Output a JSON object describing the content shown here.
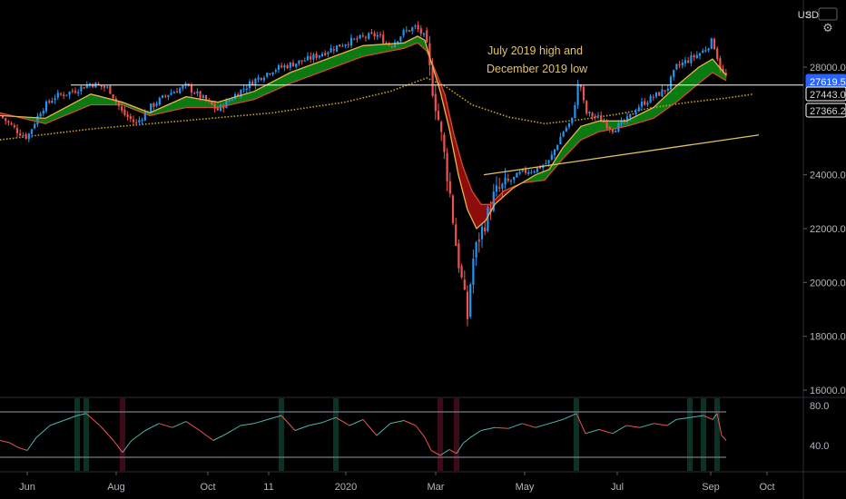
{
  "chart_data": {
    "type": "candlestick",
    "currency_label": "USD",
    "annotation": [
      "July 2019 high and",
      "December 2019 low"
    ],
    "ylim": [
      15500,
      30600
    ],
    "y_ticks": [
      16000,
      18000,
      20000,
      22000,
      24000,
      28000
    ],
    "y_tick_labels": [
      "16000.0",
      "18000.0",
      "20000.0",
      "22000.0",
      "24000.0",
      "28000.0"
    ],
    "x_labels": [
      "Jun",
      "Aug",
      "Oct",
      "11",
      "2020",
      "Mar",
      "May",
      "Jul",
      "Sep",
      "Oct"
    ],
    "price_labels": [
      {
        "text": "27619.5",
        "value": 27619.5,
        "style": "filled",
        "color": "#2962ff"
      },
      {
        "text": "27443.0",
        "value": 27443.0,
        "style": "outline",
        "color": "#ffffff"
      },
      {
        "text": "27366.2",
        "value": 27366.2,
        "style": "outline",
        "color": "#ffffff"
      }
    ],
    "horizontal_level": 27366,
    "trendline": [
      [
        24000,
        23270
      ],
      [
        25480,
        28220
      ]
    ],
    "price_path": [
      [
        0,
        26200
      ],
      [
        20,
        25600
      ],
      [
        30,
        25400
      ],
      [
        45,
        26400
      ],
      [
        60,
        26900
      ],
      [
        80,
        27100
      ],
      [
        100,
        27400
      ],
      [
        120,
        27200
      ],
      [
        135,
        26300
      ],
      [
        150,
        25900
      ],
      [
        165,
        26500
      ],
      [
        185,
        27000
      ],
      [
        205,
        27300
      ],
      [
        225,
        26800
      ],
      [
        240,
        26400
      ],
      [
        260,
        27000
      ],
      [
        280,
        27500
      ],
      [
        300,
        27900
      ],
      [
        320,
        28100
      ],
      [
        340,
        28300
      ],
      [
        360,
        28600
      ],
      [
        380,
        28900
      ],
      [
        400,
        29100
      ],
      [
        415,
        29200
      ],
      [
        430,
        28800
      ],
      [
        445,
        29300
      ],
      [
        458,
        29500
      ],
      [
        468,
        29100
      ],
      [
        475,
        27500
      ],
      [
        485,
        25700
      ],
      [
        495,
        23500
      ],
      [
        503,
        21200
      ],
      [
        510,
        19800
      ],
      [
        515,
        18700
      ],
      [
        520,
        20700
      ],
      [
        527,
        21600
      ],
      [
        535,
        22300
      ],
      [
        545,
        23300
      ],
      [
        560,
        23700
      ],
      [
        575,
        24100
      ],
      [
        590,
        24200
      ],
      [
        605,
        24500
      ],
      [
        620,
        25600
      ],
      [
        630,
        26000
      ],
      [
        638,
        27600
      ],
      [
        645,
        26300
      ],
      [
        660,
        26100
      ],
      [
        675,
        25700
      ],
      [
        690,
        26000
      ],
      [
        705,
        26600
      ],
      [
        720,
        26900
      ],
      [
        735,
        27200
      ],
      [
        745,
        28000
      ],
      [
        760,
        28300
      ],
      [
        775,
        28600
      ],
      [
        785,
        29000
      ],
      [
        795,
        27800
      ],
      [
        800,
        27650
      ]
    ],
    "ema_fast": [
      [
        0,
        26200
      ],
      [
        50,
        26100
      ],
      [
        100,
        27000
      ],
      [
        135,
        26700
      ],
      [
        165,
        26300
      ],
      [
        205,
        26900
      ],
      [
        240,
        26700
      ],
      [
        280,
        27100
      ],
      [
        320,
        27800
      ],
      [
        360,
        28300
      ],
      [
        400,
        28800
      ],
      [
        445,
        28900
      ],
      [
        460,
        29150
      ],
      [
        468,
        29000
      ],
      [
        475,
        28200
      ],
      [
        485,
        27100
      ],
      [
        495,
        25700
      ],
      [
        505,
        24000
      ],
      [
        515,
        22700
      ],
      [
        525,
        22000
      ],
      [
        535,
        22300
      ],
      [
        545,
        22900
      ],
      [
        565,
        23500
      ],
      [
        590,
        24000
      ],
      [
        605,
        24200
      ],
      [
        620,
        25000
      ],
      [
        640,
        25800
      ],
      [
        660,
        26000
      ],
      [
        690,
        26000
      ],
      [
        720,
        26500
      ],
      [
        745,
        27300
      ],
      [
        770,
        28000
      ],
      [
        785,
        28300
      ],
      [
        800,
        27700
      ]
    ],
    "ema_slow": [
      [
        0,
        26300
      ],
      [
        50,
        25900
      ],
      [
        100,
        26600
      ],
      [
        135,
        26600
      ],
      [
        165,
        26200
      ],
      [
        205,
        26500
      ],
      [
        240,
        26500
      ],
      [
        280,
        26800
      ],
      [
        320,
        27400
      ],
      [
        360,
        27900
      ],
      [
        400,
        28400
      ],
      [
        445,
        28700
      ],
      [
        460,
        28900
      ],
      [
        470,
        28600
      ],
      [
        478,
        28000
      ],
      [
        490,
        27000
      ],
      [
        500,
        25500
      ],
      [
        510,
        24300
      ],
      [
        520,
        23400
      ],
      [
        530,
        22900
      ],
      [
        540,
        22900
      ],
      [
        555,
        23400
      ],
      [
        575,
        23700
      ],
      [
        600,
        23800
      ],
      [
        620,
        24600
      ],
      [
        640,
        25300
      ],
      [
        660,
        25600
      ],
      [
        690,
        25800
      ],
      [
        720,
        26100
      ],
      [
        745,
        26700
      ],
      [
        770,
        27400
      ],
      [
        785,
        27800
      ],
      [
        800,
        27500
      ]
    ],
    "sma_long": [
      [
        0,
        25300
      ],
      [
        100,
        25700
      ],
      [
        200,
        26000
      ],
      [
        300,
        26300
      ],
      [
        380,
        26700
      ],
      [
        430,
        27100
      ],
      [
        470,
        27600
      ],
      [
        490,
        27300
      ],
      [
        520,
        26600
      ],
      [
        560,
        26150
      ],
      [
        600,
        25900
      ],
      [
        640,
        26050
      ],
      [
        680,
        26250
      ],
      [
        720,
        26500
      ],
      [
        760,
        26700
      ],
      [
        800,
        26850
      ],
      [
        830,
        27000
      ]
    ],
    "rsi": {
      "upper": 70,
      "lower": 30,
      "y_labels": [
        "80.0",
        "40.0"
      ],
      "y_label_values": [
        80,
        40
      ],
      "series": [
        [
          0,
          45
        ],
        [
          10,
          43
        ],
        [
          20,
          38
        ],
        [
          30,
          35
        ],
        [
          40,
          48
        ],
        [
          55,
          60
        ],
        [
          70,
          65
        ],
        [
          85,
          70
        ],
        [
          95,
          72
        ],
        [
          110,
          60
        ],
        [
          125,
          45
        ],
        [
          135,
          33
        ],
        [
          145,
          45
        ],
        [
          160,
          55
        ],
        [
          175,
          62
        ],
        [
          190,
          58
        ],
        [
          205,
          64
        ],
        [
          220,
          55
        ],
        [
          235,
          45
        ],
        [
          250,
          52
        ],
        [
          265,
          60
        ],
        [
          280,
          62
        ],
        [
          295,
          66
        ],
        [
          310,
          70
        ],
        [
          325,
          55
        ],
        [
          340,
          60
        ],
        [
          355,
          63
        ],
        [
          370,
          68
        ],
        [
          385,
          60
        ],
        [
          400,
          66
        ],
        [
          415,
          50
        ],
        [
          430,
          62
        ],
        [
          445,
          65
        ],
        [
          458,
          60
        ],
        [
          468,
          48
        ],
        [
          475,
          35
        ],
        [
          485,
          30
        ],
        [
          495,
          36
        ],
        [
          503,
          32
        ],
        [
          510,
          42
        ],
        [
          518,
          48
        ],
        [
          530,
          55
        ],
        [
          545,
          58
        ],
        [
          560,
          57
        ],
        [
          575,
          62
        ],
        [
          590,
          58
        ],
        [
          605,
          62
        ],
        [
          620,
          66
        ],
        [
          635,
          72
        ],
        [
          645,
          52
        ],
        [
          660,
          56
        ],
        [
          675,
          52
        ],
        [
          690,
          60
        ],
        [
          705,
          58
        ],
        [
          720,
          62
        ],
        [
          735,
          60
        ],
        [
          745,
          66
        ],
        [
          760,
          68
        ],
        [
          775,
          70
        ],
        [
          785,
          66
        ],
        [
          790,
          72
        ],
        [
          795,
          50
        ],
        [
          800,
          45
        ]
      ]
    },
    "colors": {
      "background": "#000000",
      "up": "#2196f3",
      "down": "#ef5350",
      "ema_fast": "#e8b54a",
      "ema_slow": "#d04b2e",
      "sma_long": "#c9a227",
      "cloud_up": "#0a7a12",
      "cloud_down": "#8e0d0d",
      "trendline": "#e6c35c",
      "hline": "#ffffff",
      "rsi_up": "#4db6ac",
      "rsi_down": "#ef5350",
      "rsi_bands": "#787b86"
    }
  }
}
